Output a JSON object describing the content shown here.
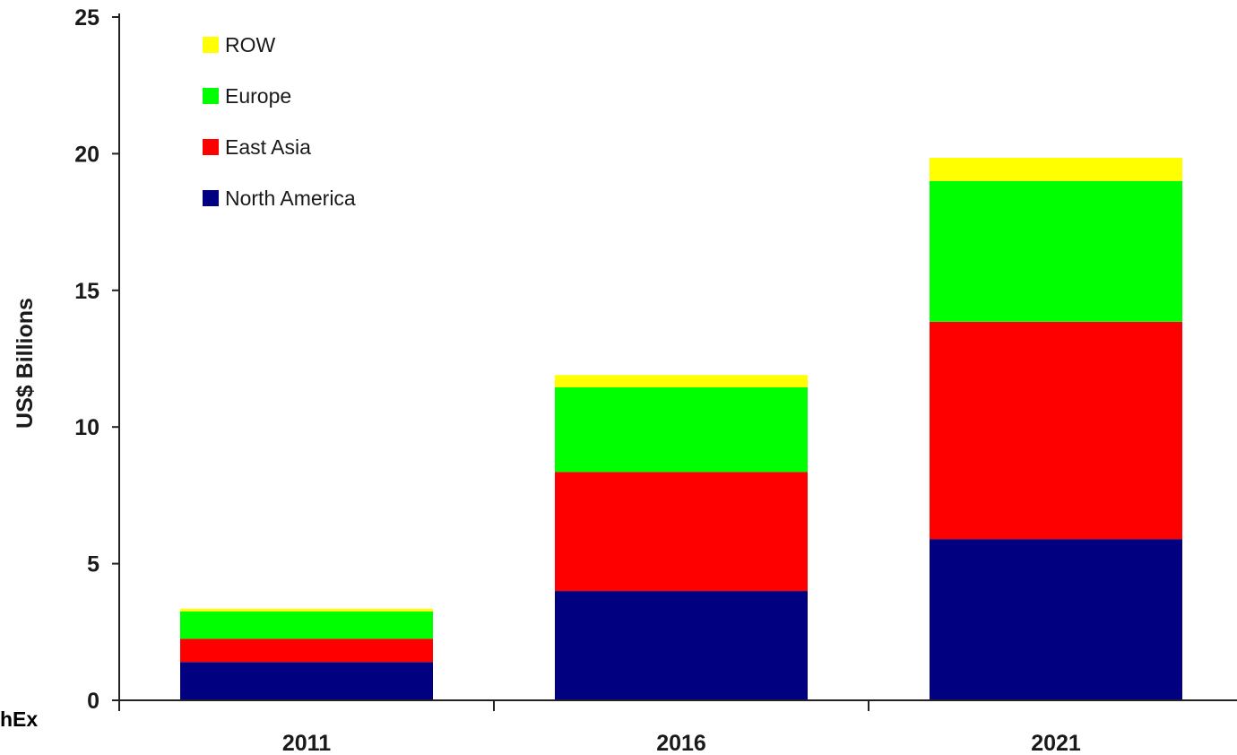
{
  "fragment_text": "hEx",
  "chart_data": {
    "type": "bar",
    "stacked": true,
    "categories": [
      "2011",
      "2016",
      "2021"
    ],
    "series": [
      {
        "name": "North America",
        "color": "#000080",
        "values": [
          1.4,
          4.0,
          5.9
        ]
      },
      {
        "name": "East Asia",
        "color": "#ff0000",
        "values": [
          0.85,
          4.35,
          7.95
        ]
      },
      {
        "name": "Europe",
        "color": "#00ff00",
        "values": [
          1.0,
          3.1,
          5.15
        ]
      },
      {
        "name": "ROW",
        "color": "#ffff00",
        "values": [
          0.1,
          0.45,
          0.85
        ]
      }
    ],
    "legend_order": [
      "ROW",
      "Europe",
      "East Asia",
      "North America"
    ],
    "legend_position": "top-left",
    "ylabel": "US$ Billions",
    "xlabel": "",
    "title": "",
    "ylim": [
      0,
      25
    ],
    "yticks": [
      0,
      5,
      10,
      15,
      20,
      25
    ],
    "grid": false
  }
}
